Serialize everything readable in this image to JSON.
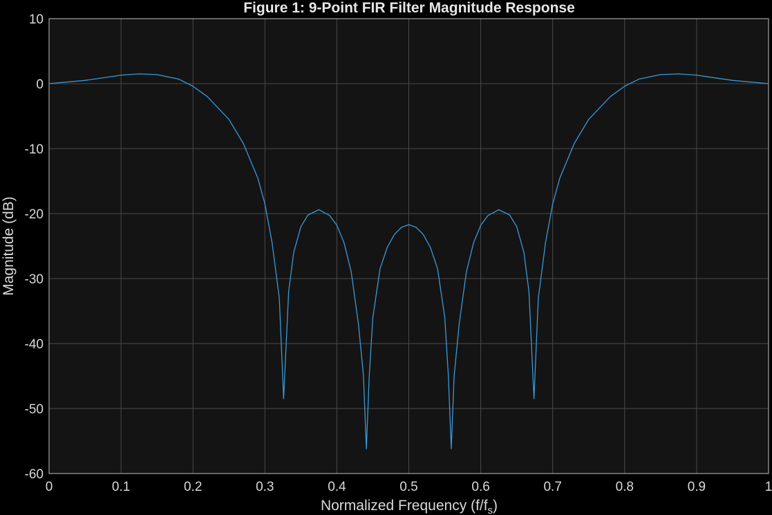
{
  "chart_data": {
    "type": "line",
    "title": "Figure 1: 9-Point FIR Filter Magnitude Response",
    "xlabel_main": "Normalized  Frequency  (f/f",
    "xlabel_sub": "s",
    "xlabel_close": ")",
    "ylabel": "Magnitude (dB)",
    "xlim": [
      0,
      1
    ],
    "ylim": [
      -60,
      10
    ],
    "x_ticks": [
      0,
      0.1,
      0.2,
      0.3,
      0.4,
      0.5,
      0.6,
      0.7,
      0.8,
      0.9,
      1
    ],
    "x_tick_labels": [
      "0",
      "0.1",
      "0.2",
      "0.3",
      "0.4",
      "0.5",
      "0.6",
      "0.7",
      "0.8",
      "0.9",
      "1"
    ],
    "y_ticks": [
      10,
      0,
      -10,
      -20,
      -30,
      -40,
      -50,
      -60
    ],
    "y_tick_labels": [
      "10",
      "0",
      "-10",
      "-20",
      "-30",
      "-40",
      "-50",
      "-60"
    ],
    "grid": true,
    "series": [
      {
        "color": "#3a9ad9",
        "x": [
          0,
          0.05,
          0.1,
          0.125,
          0.15,
          0.18,
          0.2,
          0.22,
          0.25,
          0.27,
          0.29,
          0.3,
          0.31,
          0.32,
          0.326,
          0.333,
          0.34,
          0.35,
          0.36,
          0.375,
          0.39,
          0.4,
          0.41,
          0.42,
          0.43,
          0.437,
          0.441,
          0.445,
          0.45,
          0.46,
          0.47,
          0.48,
          0.49,
          0.5,
          0.51,
          0.52,
          0.53,
          0.54,
          0.55,
          0.555,
          0.559,
          0.563,
          0.57,
          0.58,
          0.59,
          0.6,
          0.61,
          0.625,
          0.64,
          0.65,
          0.66,
          0.667,
          0.674,
          0.68,
          0.69,
          0.7,
          0.71,
          0.73,
          0.75,
          0.78,
          0.8,
          0.82,
          0.85,
          0.875,
          0.9,
          0.95,
          1
        ],
        "y": [
          0,
          0.5,
          1.3,
          1.5,
          1.4,
          0.7,
          -0.4,
          -2.0,
          -5.5,
          -9.2,
          -14.5,
          -18.5,
          -24.5,
          -33,
          -48.5,
          -32,
          -26,
          -22,
          -20.2,
          -19.4,
          -20.3,
          -21.8,
          -24.5,
          -29,
          -37,
          -45,
          -56.2,
          -45,
          -36,
          -28.5,
          -25.2,
          -23.2,
          -22.1,
          -21.7,
          -22.1,
          -23.2,
          -25.2,
          -28.5,
          -36,
          -45,
          -56.2,
          -45,
          -37,
          -29,
          -24.5,
          -21.8,
          -20.3,
          -19.4,
          -20.2,
          -22,
          -26,
          -32,
          -48.5,
          -33,
          -24.5,
          -18.5,
          -14.5,
          -9.2,
          -5.5,
          -2.0,
          -0.4,
          0.7,
          1.4,
          1.5,
          1.3,
          0.5,
          0
        ]
      }
    ]
  }
}
